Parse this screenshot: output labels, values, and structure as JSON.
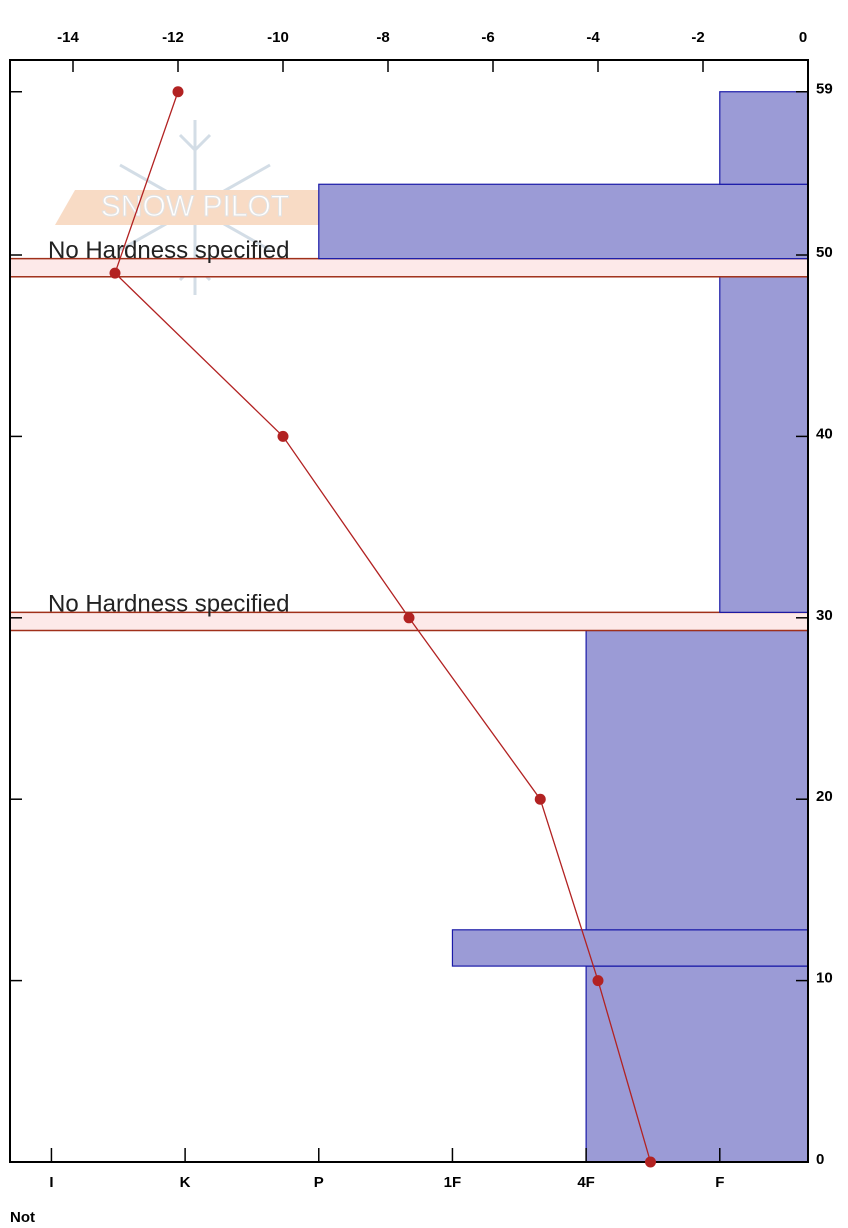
{
  "chart_data": {
    "type": "snow-profile",
    "watermark": "SNOW PILOT",
    "footer": "Not",
    "temperature": {
      "depths": [
        59,
        49,
        40,
        30,
        20,
        10,
        0
      ],
      "values": [
        -12,
        -13.2,
        -10,
        -7.6,
        -5.1,
        -4,
        -3
      ],
      "color": "#b22222"
    },
    "xlim": [
      -15.2,
      0
    ],
    "xticks": [
      -14,
      -12,
      -10,
      -8,
      -6,
      -4,
      -2,
      0
    ],
    "ylim": [
      0,
      60.75
    ],
    "yticks": [
      0,
      10,
      20,
      30,
      40,
      50,
      59
    ],
    "hlim": [
      6.31,
      0.34
    ],
    "hticks": [
      {
        "value": 6,
        "label": "I"
      },
      {
        "value": 5,
        "label": "K"
      },
      {
        "value": 4,
        "label": "P"
      },
      {
        "value": 3,
        "label": "1F"
      },
      {
        "value": 2,
        "label": "4F"
      },
      {
        "value": 1,
        "label": "F"
      }
    ],
    "bar_color": "#9b9bd6",
    "layers": [
      {
        "bottom": 0,
        "top": 10.8,
        "hardness": 2
      },
      {
        "bottom": 10.8,
        "top": 12.8,
        "hardness": 3
      },
      {
        "bottom": 12.8,
        "top": 29.3,
        "hardness": 2
      },
      {
        "bottom": 29.3,
        "top": 30.3,
        "note": "No Hardness specified"
      },
      {
        "bottom": 30.3,
        "top": 48.8,
        "hardness": 1
      },
      {
        "bottom": 48.8,
        "top": 49.8,
        "note": "No Hardness specified"
      },
      {
        "bottom": 49.8,
        "top": 53.9,
        "hardness": 4
      },
      {
        "bottom": 53.9,
        "top": 59,
        "hardness": 1
      }
    ]
  }
}
